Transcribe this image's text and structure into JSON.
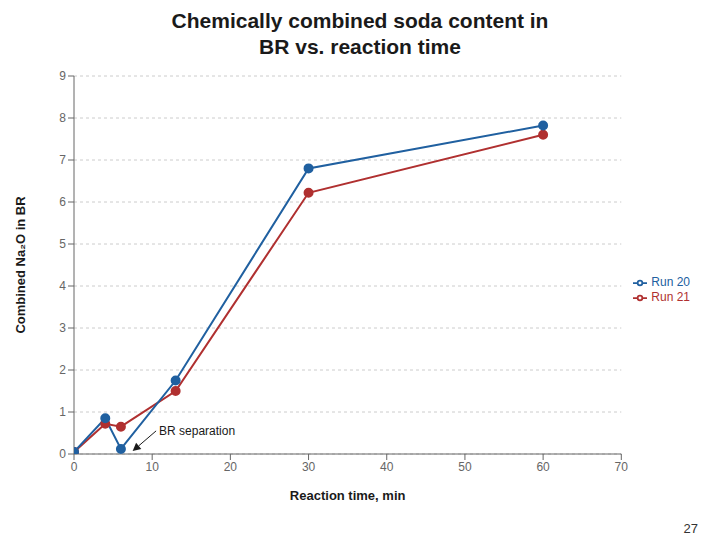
{
  "chart_data": {
    "type": "line",
    "title": "Chemically combined soda content in\nBR vs. reaction time",
    "x_label": "Reaction time, min",
    "y_label": "Combined Na₂O in BR",
    "x": [
      0,
      4,
      6,
      13,
      30,
      60
    ],
    "series": [
      {
        "name": "Run 21",
        "color": "#b03030",
        "marker": "circle",
        "line_style": "solid",
        "values": [
          0.05,
          0.72,
          0.65,
          1.5,
          6.22,
          7.6
        ]
      },
      {
        "name": "Run 20",
        "color": "#2060a0",
        "marker": "circle",
        "line_style": "solid",
        "values": [
          0.05,
          0.85,
          0.12,
          1.75,
          6.8,
          7.82
        ]
      }
    ],
    "xlim": [
      0,
      70
    ],
    "ylim": [
      0,
      9
    ],
    "xticks": [
      0,
      10,
      20,
      30,
      40,
      50,
      60,
      70
    ],
    "yticks": [
      0,
      1,
      2,
      3,
      4,
      5,
      6,
      7,
      8,
      9
    ],
    "grid": true,
    "legend": "right",
    "annotations": [
      {
        "text": "BR separation",
        "x": 10.5,
        "y": 0.55,
        "arrow_x": 7.5,
        "arrow_y": 0.07
      }
    ],
    "page_number": "27"
  }
}
